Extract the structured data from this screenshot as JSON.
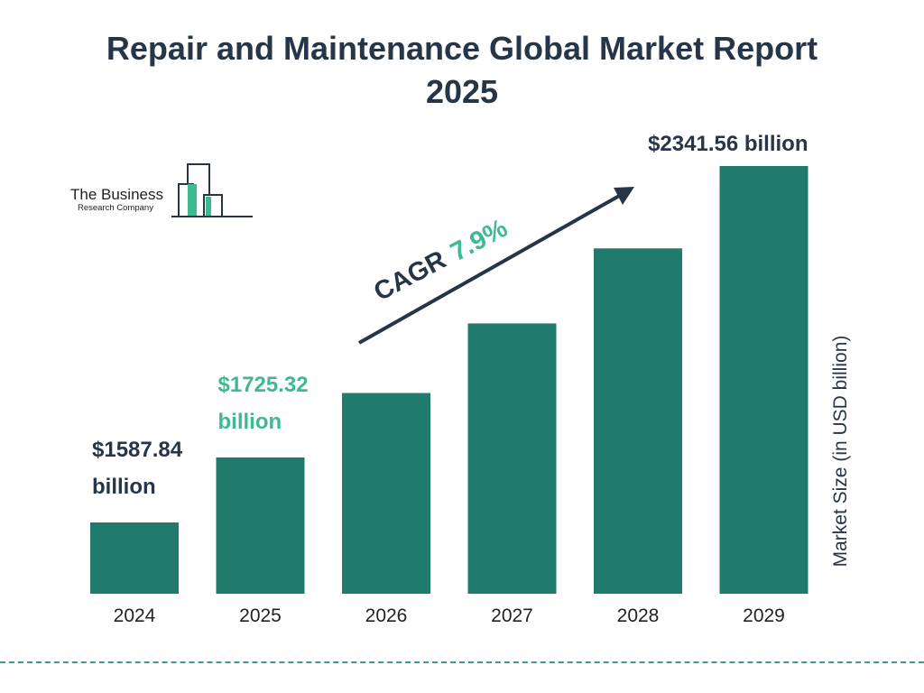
{
  "header": {
    "title": "Repair and Maintenance Global Market Report 2025"
  },
  "logo": {
    "name": "The Business",
    "sub": "Research Company"
  },
  "annotation": {
    "cagr_label": "CAGR",
    "cagr_value": "7.9%"
  },
  "colors": {
    "bar": "#217b6c",
    "accent": "#3dba8e",
    "text": "#263548"
  },
  "chart_data": {
    "type": "bar",
    "title": "Repair and Maintenance Global Market Report 2025",
    "categories": [
      "2024",
      "2025",
      "2026",
      "2027",
      "2028",
      "2029"
    ],
    "values": [
      1587.84,
      1725.32,
      1861.6,
      2008.7,
      2167.4,
      2341.56
    ],
    "ylabel": "Market Size (in USD billion)",
    "xlabel": "",
    "grid": false,
    "legend": "none",
    "data_labels": [
      {
        "index": 0,
        "line1": "$1587.84",
        "line2": "billion"
      },
      {
        "index": 1,
        "line1": "$1725.32",
        "line2": "billion"
      },
      {
        "index": 5,
        "line1": "$2341.56 billion",
        "line2": ""
      }
    ]
  }
}
